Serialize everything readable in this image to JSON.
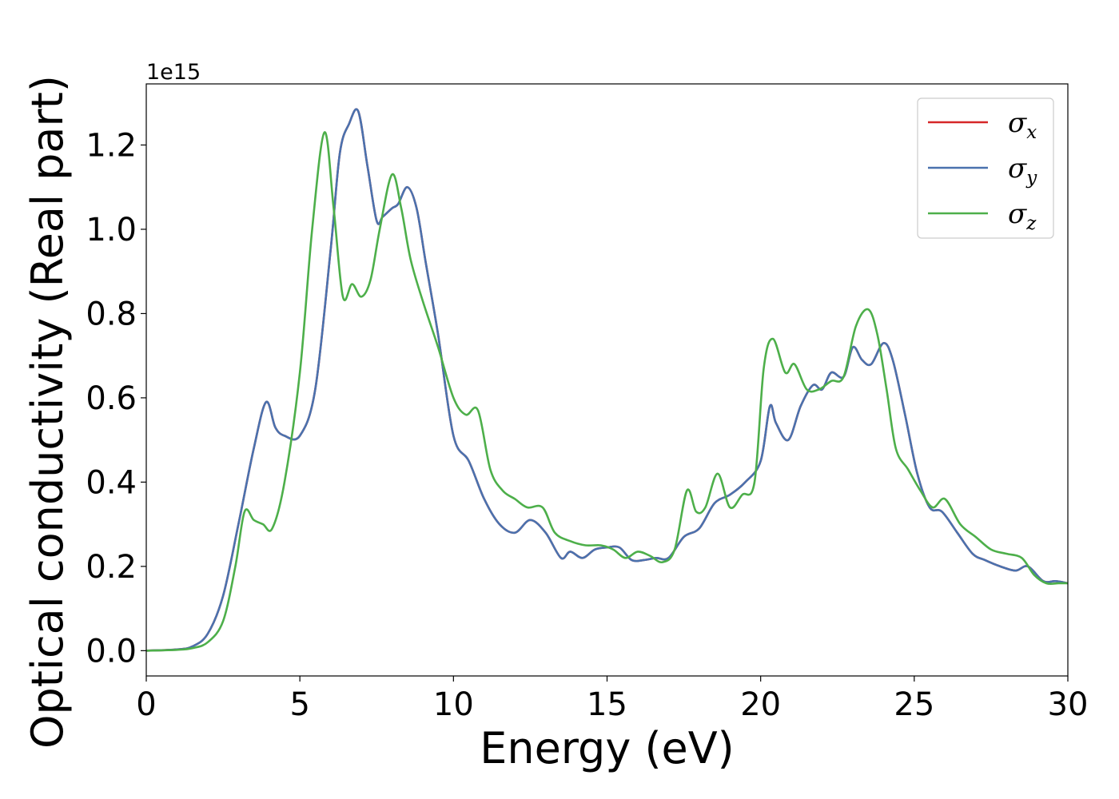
{
  "chart_data": {
    "type": "line",
    "xlabel": "Energy (eV)",
    "ylabel": "Optical conductivity (Real part)",
    "y_offset_label": "1e15",
    "xlim": [
      0,
      30
    ],
    "ylim": [
      -0.06,
      1.345
    ],
    "x_ticks": [
      0,
      5,
      10,
      15,
      20,
      25,
      30
    ],
    "x_tick_labels": [
      "0",
      "5",
      "10",
      "15",
      "20",
      "25",
      "30"
    ],
    "y_ticks": [
      0.0,
      0.2,
      0.4,
      0.6,
      0.8,
      1.0,
      1.2
    ],
    "y_tick_labels": [
      "0.0",
      "0.2",
      "0.4",
      "0.6",
      "0.8",
      "1.0",
      "1.2"
    ],
    "grid": false,
    "legend_position": "top-right",
    "series": [
      {
        "name": "σx",
        "symbol": "σ",
        "subscript": "x",
        "color": "#d62728",
        "x": [
          0,
          1,
          1.5,
          2,
          2.5,
          3,
          3.5,
          3.9,
          4.2,
          4.5,
          5,
          5.5,
          6,
          6.3,
          6.6,
          6.9,
          7.2,
          7.5,
          7.7,
          8,
          8.2,
          8.5,
          8.8,
          9.1,
          9.5,
          10,
          10.5,
          11,
          11.5,
          12,
          12.5,
          13,
          13.5,
          13.8,
          14.2,
          14.6,
          15,
          15.4,
          15.8,
          16.2,
          16.6,
          17,
          17.5,
          18,
          18.5,
          19,
          19.5,
          20,
          20.3,
          20.5,
          20.9,
          21.3,
          21.7,
          22,
          22.3,
          22.7,
          23,
          23.3,
          23.6,
          24,
          24.3,
          24.7,
          25.1,
          25.5,
          25.9,
          26.4,
          26.9,
          27.3,
          27.8,
          28.3,
          28.7,
          29.2,
          29.6,
          30
        ],
        "y": [
          0,
          0.003,
          0.01,
          0.04,
          0.13,
          0.3,
          0.48,
          0.59,
          0.53,
          0.51,
          0.51,
          0.62,
          0.95,
          1.18,
          1.25,
          1.28,
          1.15,
          1.02,
          1.03,
          1.05,
          1.06,
          1.1,
          1.05,
          0.92,
          0.75,
          0.51,
          0.45,
          0.36,
          0.3,
          0.28,
          0.31,
          0.28,
          0.22,
          0.235,
          0.22,
          0.24,
          0.245,
          0.245,
          0.215,
          0.215,
          0.22,
          0.22,
          0.27,
          0.29,
          0.35,
          0.37,
          0.4,
          0.45,
          0.58,
          0.54,
          0.5,
          0.58,
          0.63,
          0.62,
          0.66,
          0.65,
          0.72,
          0.69,
          0.68,
          0.73,
          0.69,
          0.56,
          0.42,
          0.34,
          0.33,
          0.28,
          0.23,
          0.215,
          0.2,
          0.19,
          0.2,
          0.165,
          0.165,
          0.16
        ]
      },
      {
        "name": "σy",
        "symbol": "σ",
        "subscript": "y",
        "color": "#4a72ae",
        "x": [
          0,
          1,
          1.5,
          2,
          2.5,
          3,
          3.5,
          3.9,
          4.2,
          4.5,
          5,
          5.5,
          6,
          6.3,
          6.6,
          6.9,
          7.2,
          7.5,
          7.7,
          8,
          8.2,
          8.5,
          8.8,
          9.1,
          9.5,
          10,
          10.5,
          11,
          11.5,
          12,
          12.5,
          13,
          13.5,
          13.8,
          14.2,
          14.6,
          15,
          15.4,
          15.8,
          16.2,
          16.6,
          17,
          17.5,
          18,
          18.5,
          19,
          19.5,
          20,
          20.3,
          20.5,
          20.9,
          21.3,
          21.7,
          22,
          22.3,
          22.7,
          23,
          23.3,
          23.6,
          24,
          24.3,
          24.7,
          25.1,
          25.5,
          25.9,
          26.4,
          26.9,
          27.3,
          27.8,
          28.3,
          28.7,
          29.2,
          29.6,
          30
        ],
        "y": [
          0,
          0.003,
          0.01,
          0.04,
          0.13,
          0.3,
          0.48,
          0.59,
          0.53,
          0.51,
          0.51,
          0.62,
          0.95,
          1.18,
          1.25,
          1.28,
          1.15,
          1.02,
          1.03,
          1.05,
          1.06,
          1.1,
          1.05,
          0.92,
          0.75,
          0.51,
          0.45,
          0.36,
          0.3,
          0.28,
          0.31,
          0.28,
          0.22,
          0.235,
          0.22,
          0.24,
          0.245,
          0.245,
          0.215,
          0.215,
          0.22,
          0.22,
          0.27,
          0.29,
          0.35,
          0.37,
          0.4,
          0.45,
          0.58,
          0.54,
          0.5,
          0.58,
          0.63,
          0.62,
          0.66,
          0.65,
          0.72,
          0.69,
          0.68,
          0.73,
          0.69,
          0.56,
          0.42,
          0.34,
          0.33,
          0.28,
          0.23,
          0.215,
          0.2,
          0.19,
          0.2,
          0.165,
          0.165,
          0.16
        ]
      },
      {
        "name": "σz",
        "symbol": "σ",
        "subscript": "z",
        "color": "#4daf4a",
        "x": [
          0,
          1,
          1.5,
          2,
          2.5,
          2.9,
          3.2,
          3.5,
          3.8,
          4.1,
          4.5,
          5,
          5.4,
          5.8,
          6.1,
          6.4,
          6.7,
          7,
          7.3,
          7.6,
          8,
          8.3,
          8.6,
          9,
          9.5,
          10,
          10.4,
          10.8,
          11.2,
          11.6,
          12,
          12.4,
          12.9,
          13.3,
          13.8,
          14.3,
          14.8,
          15.2,
          15.6,
          16,
          16.4,
          16.8,
          17.2,
          17.6,
          17.9,
          18.2,
          18.6,
          19,
          19.4,
          19.8,
          20.1,
          20.4,
          20.8,
          21.1,
          21.5,
          21.9,
          22.3,
          22.7,
          23.1,
          23.5,
          23.8,
          24.1,
          24.4,
          24.8,
          25.2,
          25.6,
          26,
          26.5,
          27,
          27.5,
          28,
          28.5,
          28.9,
          29.3,
          29.7,
          30
        ],
        "y": [
          0,
          0.002,
          0.006,
          0.02,
          0.07,
          0.2,
          0.33,
          0.31,
          0.3,
          0.29,
          0.4,
          0.66,
          1.0,
          1.23,
          1.05,
          0.84,
          0.87,
          0.84,
          0.88,
          1.0,
          1.13,
          1.05,
          0.93,
          0.83,
          0.72,
          0.6,
          0.56,
          0.57,
          0.43,
          0.38,
          0.36,
          0.34,
          0.34,
          0.28,
          0.26,
          0.25,
          0.25,
          0.24,
          0.22,
          0.235,
          0.225,
          0.21,
          0.24,
          0.38,
          0.33,
          0.34,
          0.42,
          0.34,
          0.37,
          0.4,
          0.67,
          0.74,
          0.66,
          0.68,
          0.62,
          0.62,
          0.64,
          0.65,
          0.77,
          0.81,
          0.75,
          0.62,
          0.48,
          0.43,
          0.38,
          0.34,
          0.36,
          0.3,
          0.27,
          0.24,
          0.23,
          0.22,
          0.18,
          0.16,
          0.16,
          0.16
        ]
      }
    ]
  }
}
